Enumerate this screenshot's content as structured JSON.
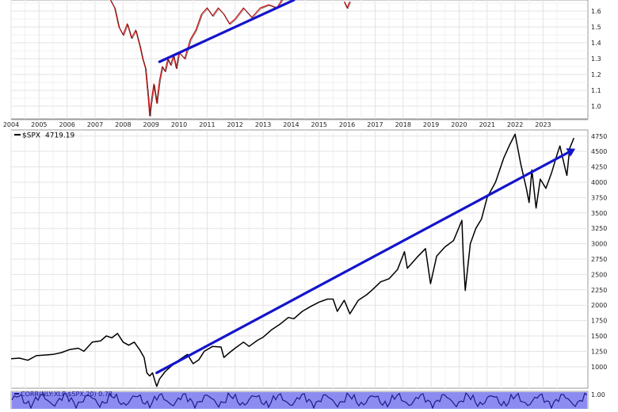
{
  "chart_data": [
    {
      "type": "line",
      "panel": "top",
      "title": "",
      "series": [
        {
          "points": [
            [
              2007.55,
              1.67
            ],
            [
              2007.7,
              1.62
            ],
            [
              2007.85,
              1.5
            ],
            [
              2008.0,
              1.45
            ],
            [
              2008.15,
              1.52
            ],
            [
              2008.3,
              1.43
            ],
            [
              2008.45,
              1.48
            ],
            [
              2008.6,
              1.38
            ],
            [
              2008.7,
              1.3
            ],
            [
              2008.8,
              1.24
            ],
            [
              2008.9,
              1.05
            ],
            [
              2008.95,
              0.94
            ],
            [
              2009.0,
              1.02
            ],
            [
              2009.1,
              1.14
            ],
            [
              2009.2,
              1.02
            ],
            [
              2009.3,
              1.16
            ],
            [
              2009.4,
              1.25
            ],
            [
              2009.5,
              1.22
            ],
            [
              2009.6,
              1.3
            ],
            [
              2009.7,
              1.26
            ],
            [
              2009.8,
              1.32
            ],
            [
              2009.9,
              1.24
            ],
            [
              2010.0,
              1.34
            ],
            [
              2010.2,
              1.3
            ],
            [
              2010.4,
              1.42
            ],
            [
              2010.6,
              1.48
            ],
            [
              2010.8,
              1.58
            ],
            [
              2011.0,
              1.62
            ],
            [
              2011.2,
              1.57
            ],
            [
              2011.4,
              1.62
            ],
            [
              2011.6,
              1.58
            ],
            [
              2011.8,
              1.52
            ],
            [
              2012.0,
              1.55
            ],
            [
              2012.3,
              1.62
            ],
            [
              2012.6,
              1.56
            ],
            [
              2012.9,
              1.62
            ],
            [
              2013.2,
              1.64
            ],
            [
              2013.5,
              1.62
            ],
            [
              2013.7,
              1.68
            ]
          ],
          "color": "#cc1111"
        },
        {
          "points": [
            [
              2015.9,
              1.66
            ],
            [
              2016.0,
              1.62
            ],
            [
              2016.1,
              1.66
            ]
          ],
          "color": "#cc1111"
        }
      ],
      "trendline": {
        "from": [
          2009.3,
          1.28
        ],
        "to": [
          2014.1,
          1.67
        ],
        "color": "#1414cc"
      },
      "y_ticks": [
        "1.0",
        "1.1",
        "1.2",
        "1.3",
        "1.4",
        "1.5",
        "1.6"
      ],
      "ylim": [
        0.92,
        1.67
      ],
      "x_ticks": [
        "2004",
        "2005",
        "2006",
        "2007",
        "2008",
        "2009",
        "2010",
        "2011",
        "2012",
        "2013",
        "2014",
        "2015",
        "2016",
        "2017",
        "2018",
        "2019",
        "2020",
        "2021",
        "2022",
        "2023"
      ],
      "xlim": [
        2004.0,
        2024.6
      ]
    },
    {
      "type": "line",
      "panel": "middle",
      "title": "",
      "legend": {
        "symbol": "$SPX",
        "value": "4719.19"
      },
      "series": [
        {
          "name": "$SPX",
          "points": [
            [
              2004.0,
              1130
            ],
            [
              2004.3,
              1140
            ],
            [
              2004.6,
              1105
            ],
            [
              2004.9,
              1180
            ],
            [
              2005.2,
              1190
            ],
            [
              2005.5,
              1200
            ],
            [
              2005.8,
              1230
            ],
            [
              2006.1,
              1280
            ],
            [
              2006.4,
              1300
            ],
            [
              2006.6,
              1250
            ],
            [
              2006.9,
              1400
            ],
            [
              2007.2,
              1420
            ],
            [
              2007.4,
              1500
            ],
            [
              2007.6,
              1470
            ],
            [
              2007.8,
              1540
            ],
            [
              2008.0,
              1400
            ],
            [
              2008.2,
              1350
            ],
            [
              2008.4,
              1400
            ],
            [
              2008.6,
              1270
            ],
            [
              2008.75,
              1150
            ],
            [
              2008.85,
              900
            ],
            [
              2008.95,
              850
            ],
            [
              2009.05,
              900
            ],
            [
              2009.15,
              750
            ],
            [
              2009.2,
              680
            ],
            [
              2009.3,
              800
            ],
            [
              2009.5,
              920
            ],
            [
              2009.7,
              1000
            ],
            [
              2010.0,
              1110
            ],
            [
              2010.3,
              1200
            ],
            [
              2010.5,
              1050
            ],
            [
              2010.7,
              1110
            ],
            [
              2010.9,
              1250
            ],
            [
              2011.2,
              1330
            ],
            [
              2011.5,
              1320
            ],
            [
              2011.6,
              1150
            ],
            [
              2011.8,
              1230
            ],
            [
              2012.0,
              1300
            ],
            [
              2012.3,
              1400
            ],
            [
              2012.5,
              1330
            ],
            [
              2012.8,
              1430
            ],
            [
              2013.0,
              1480
            ],
            [
              2013.3,
              1600
            ],
            [
              2013.6,
              1690
            ],
            [
              2013.9,
              1800
            ],
            [
              2014.1,
              1780
            ],
            [
              2014.4,
              1900
            ],
            [
              2014.7,
              1980
            ],
            [
              2015.0,
              2050
            ],
            [
              2015.3,
              2100
            ],
            [
              2015.5,
              2100
            ],
            [
              2015.65,
              1900
            ],
            [
              2015.9,
              2080
            ],
            [
              2016.1,
              1860
            ],
            [
              2016.4,
              2080
            ],
            [
              2016.7,
              2170
            ],
            [
              2016.9,
              2250
            ],
            [
              2017.2,
              2380
            ],
            [
              2017.5,
              2430
            ],
            [
              2017.8,
              2580
            ],
            [
              2018.05,
              2870
            ],
            [
              2018.15,
              2600
            ],
            [
              2018.5,
              2780
            ],
            [
              2018.8,
              2920
            ],
            [
              2018.98,
              2350
            ],
            [
              2019.2,
              2800
            ],
            [
              2019.5,
              2950
            ],
            [
              2019.8,
              3050
            ],
            [
              2020.1,
              3380
            ],
            [
              2020.15,
              2800
            ],
            [
              2020.22,
              2240
            ],
            [
              2020.4,
              3000
            ],
            [
              2020.6,
              3250
            ],
            [
              2020.8,
              3400
            ],
            [
              2021.0,
              3750
            ],
            [
              2021.3,
              4000
            ],
            [
              2021.6,
              4400
            ],
            [
              2021.8,
              4600
            ],
            [
              2022.0,
              4780
            ],
            [
              2022.2,
              4300
            ],
            [
              2022.4,
              3900
            ],
            [
              2022.5,
              3670
            ],
            [
              2022.6,
              4200
            ],
            [
              2022.75,
              3580
            ],
            [
              2022.9,
              4050
            ],
            [
              2023.1,
              3900
            ],
            [
              2023.3,
              4150
            ],
            [
              2023.5,
              4450
            ],
            [
              2023.6,
              4590
            ],
            [
              2023.8,
              4200
            ],
            [
              2023.85,
              4110
            ],
            [
              2023.95,
              4550
            ],
            [
              2024.1,
              4719
            ]
          ],
          "color": "#000000"
        }
      ],
      "trendline": {
        "from": [
          2009.2,
          900
        ],
        "to": [
          2024.05,
          4520
        ],
        "color": "#1414cc",
        "arrow": true
      },
      "y_ticks": [
        "1000",
        "1250",
        "1500",
        "1750",
        "2000",
        "2250",
        "2500",
        "2750",
        "3000",
        "3250",
        "3500",
        "3750",
        "4000",
        "4250",
        "4500",
        "4750"
      ],
      "ylim": [
        650,
        4850
      ],
      "xlim": [
        2004.0,
        2024.6
      ]
    },
    {
      "type": "area",
      "panel": "bottom",
      "title": "",
      "legend": {
        "text": "CORR(NLY:XLP,$SPX,20) 0.73"
      },
      "y_ticks": [
        "1.00"
      ],
      "xlim": [
        2004.0,
        2024.6
      ],
      "fill_color": "#8c8cf0",
      "line_color": "#1c1c8c"
    }
  ]
}
